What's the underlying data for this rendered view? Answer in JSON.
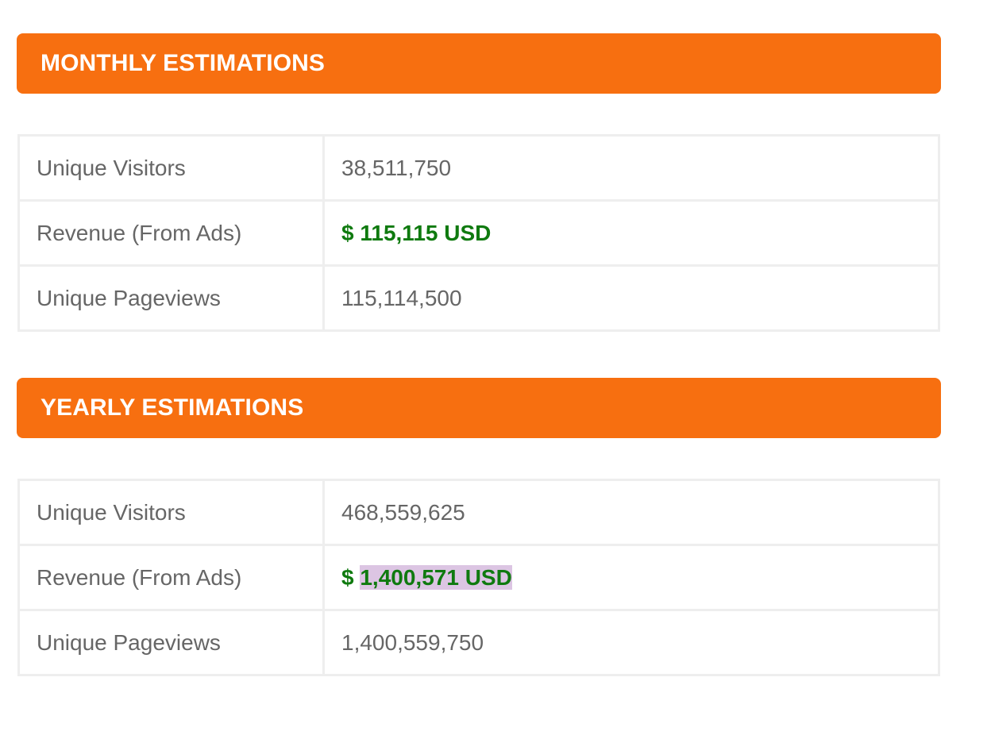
{
  "monthly": {
    "title": "MONTHLY ESTIMATIONS",
    "rows": [
      {
        "label": "Unique Visitors",
        "value": "38,511,750"
      },
      {
        "label": "Revenue (From Ads)",
        "currency": "$",
        "value": "115,115 USD"
      },
      {
        "label": "Unique Pageviews",
        "value": "115,114,500"
      }
    ]
  },
  "yearly": {
    "title": "YEARLY ESTIMATIONS",
    "rows": [
      {
        "label": "Unique Visitors",
        "value": "468,559,625"
      },
      {
        "label": "Revenue (From Ads)",
        "currency": "$",
        "value": "1,400,571 USD"
      },
      {
        "label": "Unique Pageviews",
        "value": "1,400,559,750"
      }
    ]
  },
  "colors": {
    "header_bg": "#f76f10",
    "revenue_text": "#0f7a0f",
    "selection_highlight": "#dcc5e3"
  }
}
